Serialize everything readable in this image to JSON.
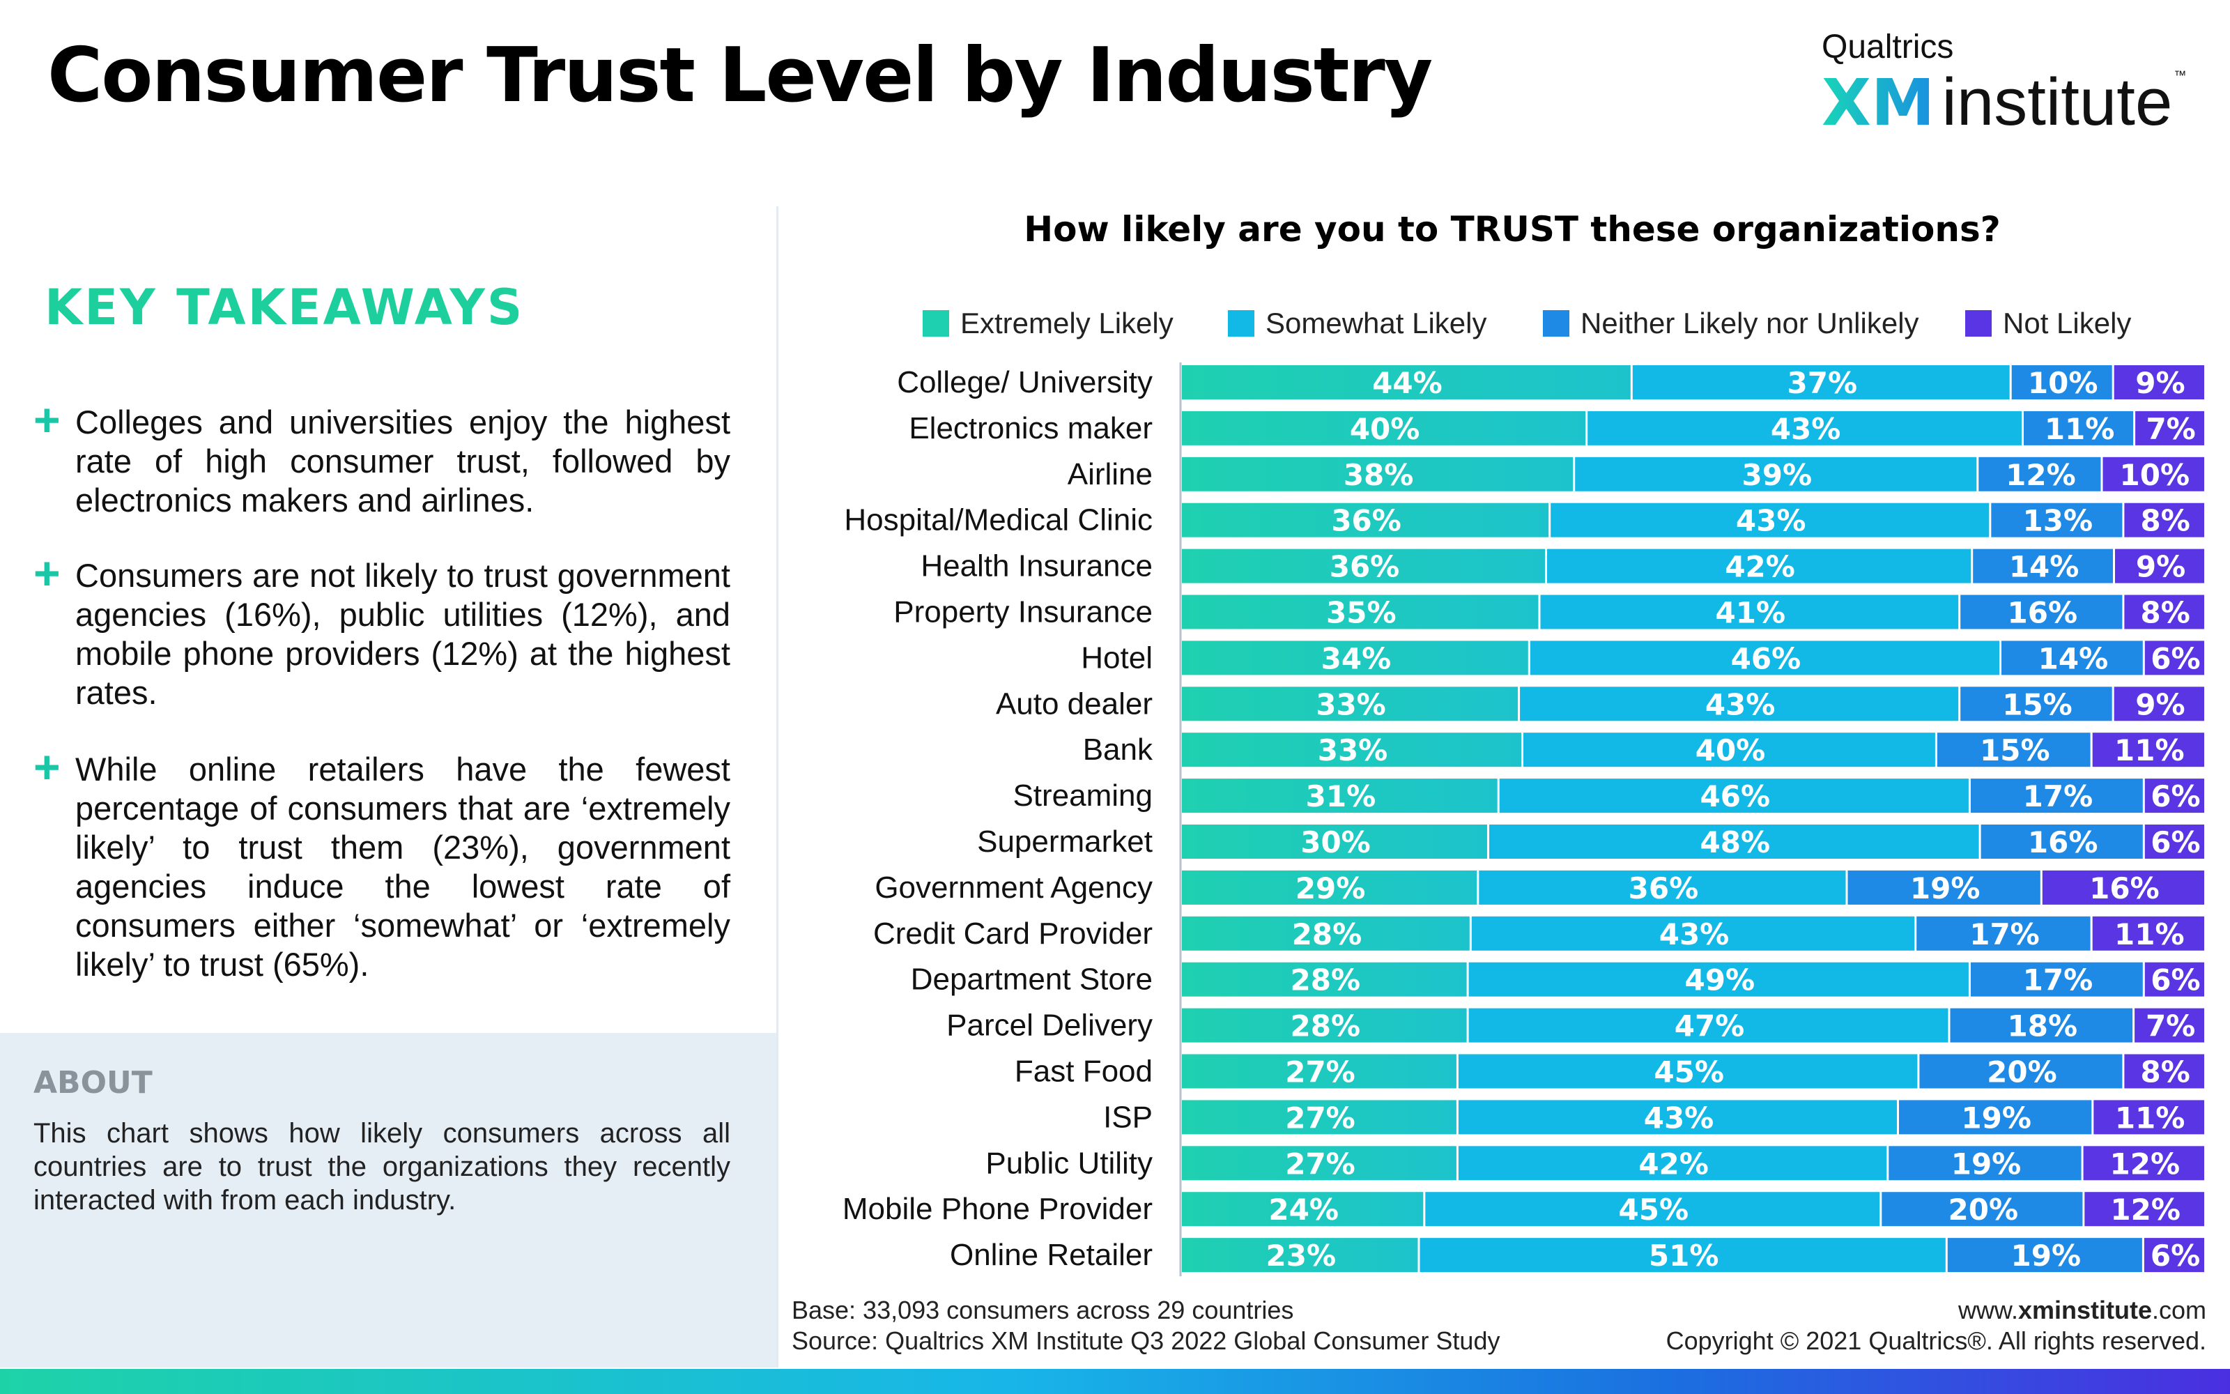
{
  "header": {
    "title": "Consumer Trust Level by Industry",
    "logo": {
      "brand_small": "Qualtrics",
      "brand_xm": "XM",
      "brand_institute": "institute",
      "tm": "™"
    }
  },
  "sidebar": {
    "takeaways_heading": "KEY TAKEAWAYS",
    "takeaways": [
      "Colleges and universities enjoy the highest rate of high consumer trust, followed by electronics makers and airlines.",
      "Consumers are not likely to trust government agencies (16%), public utilities (12%), and mobile phone providers (12%) at the highest rates.",
      "While online retailers have the fewest percentage of consumers that are ‘extremely likely’ to trust them (23%), government agencies induce the lowest rate of consumers either ‘somewhat’ or ‘extremely likely’ to trust (65%)."
    ],
    "about_heading": "ABOUT",
    "about_text": "This chart shows how likely consumers across all countries are to trust the organizations they recently interacted with from each industry."
  },
  "footer": {
    "base": "Base: 33,093 consumers across 29 countries",
    "source": "Source: Qualtrics XM Institute Q3 2022 Global Consumer Study",
    "url_prefix": "www.",
    "url_bold": "xminstitute",
    "url_suffix": ".com",
    "copyright": "Copyright © 2021 Qualtrics®. All rights reserved."
  },
  "colors": {
    "extremely_likely": "#1fd0b0",
    "somewhat_likely": "#12b8e6",
    "neither": "#1e8ae6",
    "not_likely": "#5a35e3",
    "takeaway_accent": "#1ecf9e"
  },
  "chart_data": {
    "type": "bar",
    "orientation": "horizontal",
    "stacked": true,
    "title": "How likely are you to TRUST these organizations?",
    "legend_position": "top",
    "categories": [
      "College/ University",
      "Electronics maker",
      "Airline",
      "Hospital/Medical Clinic",
      "Health Insurance",
      "Property Insurance",
      "Hotel",
      "Auto dealer",
      "Bank",
      "Streaming",
      "Supermarket",
      "Government Agency",
      "Credit Card Provider",
      "Department Store",
      "Parcel Delivery",
      "Fast Food",
      "ISP",
      "Public Utility",
      "Mobile Phone Provider",
      "Online Retailer"
    ],
    "series": [
      {
        "name": "Extremely Likely",
        "color": "#1fd0b0",
        "values": [
          44,
          40,
          38,
          36,
          36,
          35,
          34,
          33,
          33,
          31,
          30,
          29,
          28,
          28,
          28,
          27,
          27,
          27,
          24,
          23
        ]
      },
      {
        "name": "Somewhat Likely",
        "color": "#12b8e6",
        "values": [
          37,
          43,
          39,
          43,
          42,
          41,
          46,
          43,
          40,
          46,
          48,
          36,
          43,
          49,
          47,
          45,
          43,
          42,
          45,
          51
        ]
      },
      {
        "name": "Neither Likely nor Unlikely",
        "color": "#1e8ae6",
        "values": [
          10,
          11,
          12,
          13,
          14,
          16,
          14,
          15,
          15,
          17,
          16,
          19,
          17,
          17,
          18,
          20,
          19,
          19,
          20,
          19
        ]
      },
      {
        "name": "Not Likely",
        "color": "#5a35e3",
        "values": [
          9,
          7,
          10,
          8,
          9,
          8,
          6,
          9,
          11,
          6,
          6,
          16,
          11,
          6,
          7,
          8,
          11,
          12,
          12,
          6
        ]
      }
    ],
    "value_suffix": "%",
    "xlim": [
      0,
      100
    ],
    "grid": false
  }
}
